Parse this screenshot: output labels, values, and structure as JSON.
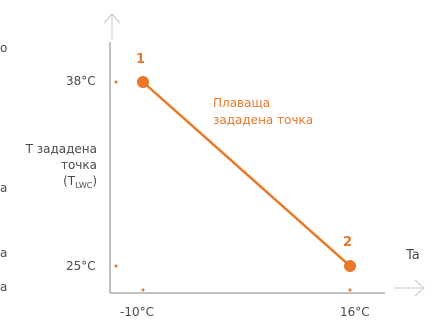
{
  "chart_data": {
    "type": "line",
    "x": [
      "-10°C",
      "16°C"
    ],
    "series": [
      {
        "name": "Плаваща зададена точка",
        "values": [
          38,
          25
        ]
      }
    ],
    "point_labels": [
      "1",
      "2"
    ],
    "x_tick_labels": [
      "-10°C",
      "16°C"
    ],
    "y_tick_labels": [
      "38°C",
      "25°C"
    ],
    "ylabel": {
      "line1": "T зададена",
      "line2": "точка",
      "line3_open": "(T",
      "line3_sub": "LWC",
      "line3_close": ")"
    },
    "xlabel": "Ta",
    "annotation": {
      "line1": "Плаваща",
      "line2": "зададена точка"
    },
    "edge_fragments": [
      "o",
      "a",
      "a",
      "a"
    ],
    "colors": {
      "series": "#e8782a",
      "axis": "#9a9a9a",
      "axis_light": "#c8c8c8",
      "text": "#4a4a4a"
    },
    "grid": false,
    "legend": "none"
  }
}
